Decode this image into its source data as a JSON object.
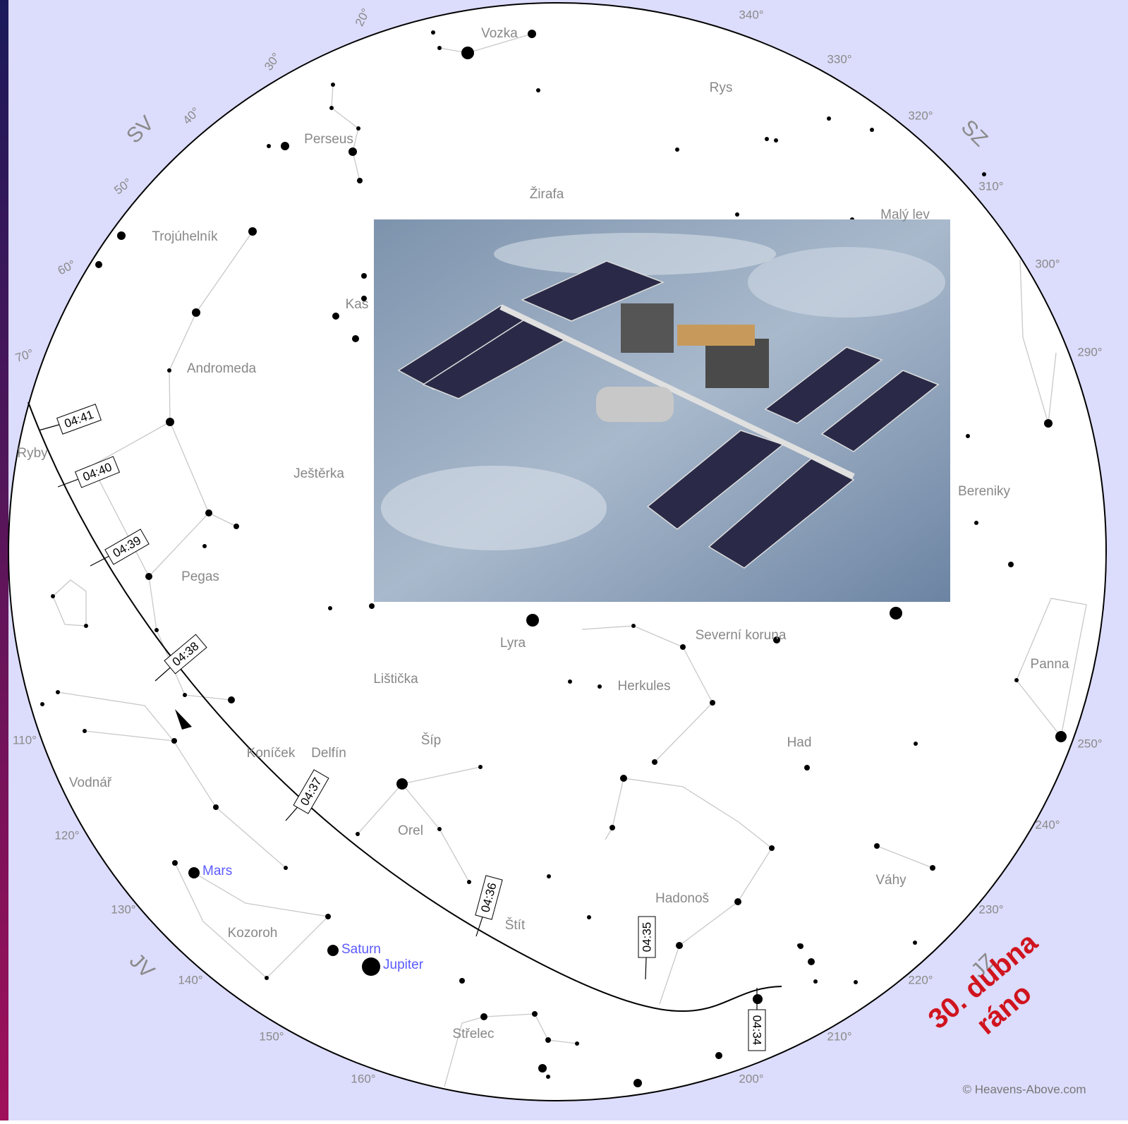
{
  "title": {
    "lines": [
      "30. dubna",
      "ráno"
    ]
  },
  "directions": [
    "SV",
    "SZ",
    "JV",
    "JZ"
  ],
  "azimuth_labels": [
    "20°",
    "30°",
    "40°",
    "50°",
    "60°",
    "70°",
    "110°",
    "120°",
    "130°",
    "140°",
    "150°",
    "160°",
    "200°",
    "210°",
    "220°",
    "230°",
    "240°",
    "250°",
    "290°",
    "300°",
    "310°",
    "320°",
    "330°",
    "340°"
  ],
  "constellations": [
    "Vozka",
    "Rys",
    "Perseus",
    "Žirafa",
    "Malý lev",
    "Trojúhelník",
    "Kas",
    "Andromeda",
    "Ryby",
    "Ještěrka",
    "Bereniky",
    "Pegas",
    "Lyra",
    "Severní koruna",
    "Panna",
    "Lištička",
    "Herkules",
    "Koníček",
    "Delfín",
    "Šíp",
    "Had",
    "Vodnář",
    "Orel",
    "Váhy",
    "Hadonoš",
    "Štít",
    "Kozoroh",
    "Střelec"
  ],
  "planets": [
    "Mars",
    "Saturn",
    "Jupiter"
  ],
  "pass_times": [
    "04:41",
    "04:40",
    "04:39",
    "04:38",
    "04:37",
    "04:36",
    "04:35",
    "04:34"
  ],
  "credit": "© Heavens-Above.com"
}
